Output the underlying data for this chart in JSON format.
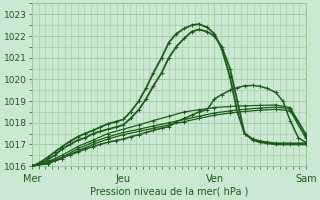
{
  "bg_color": "#cce8d4",
  "plot_bg_color": "#cce8d4",
  "grid_color": "#99cc99",
  "line_color": "#1a5e1a",
  "xlabel": "Pression niveau de la mer( hPa )",
  "ylim": [
    1016,
    1023.5
  ],
  "xlim": [
    0.0,
    3.0
  ],
  "xtick_labels": [
    "Mer",
    "Jeu",
    "Ven",
    "Sam"
  ],
  "xtick_positions": [
    0.0,
    1.0,
    2.0,
    3.0
  ],
  "ytick_positions": [
    1016,
    1017,
    1018,
    1019,
    1020,
    1021,
    1022,
    1023
  ],
  "series": [
    {
      "x": [
        0.0,
        0.08,
        0.17,
        0.25,
        0.33,
        0.42,
        0.5,
        0.58,
        0.67,
        0.75,
        0.83,
        0.92,
        1.0,
        1.08,
        1.17,
        1.25,
        1.33,
        1.42,
        1.5,
        1.58,
        1.67,
        1.75,
        1.83,
        1.92,
        2.0,
        2.08,
        2.17,
        2.25,
        2.33,
        2.42,
        2.5,
        2.58,
        2.67,
        2.75,
        2.83,
        2.92,
        3.0
      ],
      "y": [
        1016.0,
        1016.1,
        1016.3,
        1016.5,
        1016.8,
        1017.0,
        1017.2,
        1017.3,
        1017.5,
        1017.6,
        1017.7,
        1017.8,
        1017.9,
        1018.2,
        1018.6,
        1019.1,
        1019.7,
        1020.3,
        1021.0,
        1021.5,
        1021.9,
        1022.2,
        1022.3,
        1022.2,
        1022.0,
        1021.5,
        1020.5,
        1019.0,
        1017.5,
        1017.2,
        1017.1,
        1017.05,
        1017.0,
        1017.0,
        1017.0,
        1017.0,
        1017.0
      ],
      "lw": 1.3
    },
    {
      "x": [
        0.0,
        0.08,
        0.17,
        0.25,
        0.33,
        0.42,
        0.5,
        0.58,
        0.67,
        0.75,
        0.83,
        0.92,
        1.0,
        1.08,
        1.17,
        1.25,
        1.33,
        1.42,
        1.5,
        1.58,
        1.67,
        1.75,
        1.83,
        1.92,
        2.0,
        2.08,
        2.17,
        2.25,
        2.33,
        2.42,
        2.5,
        2.58,
        2.67,
        2.75,
        2.83,
        2.92,
        3.0
      ],
      "y": [
        1016.0,
        1016.15,
        1016.4,
        1016.65,
        1016.9,
        1017.15,
        1017.35,
        1017.5,
        1017.65,
        1017.8,
        1017.95,
        1018.05,
        1018.15,
        1018.5,
        1019.0,
        1019.6,
        1020.3,
        1021.0,
        1021.7,
        1022.1,
        1022.35,
        1022.5,
        1022.55,
        1022.4,
        1022.1,
        1021.4,
        1020.1,
        1018.5,
        1017.5,
        1017.25,
        1017.15,
        1017.1,
        1017.05,
        1017.05,
        1017.05,
        1017.05,
        1017.05
      ],
      "lw": 1.3
    },
    {
      "x": [
        0.0,
        0.17,
        0.33,
        0.5,
        0.67,
        0.83,
        1.0,
        1.17,
        1.33,
        1.5,
        1.67,
        1.83,
        2.0,
        2.17,
        2.33,
        2.5,
        2.67,
        2.83,
        3.0
      ],
      "y": [
        1016.0,
        1016.2,
        1016.5,
        1016.9,
        1017.2,
        1017.5,
        1017.7,
        1017.9,
        1018.1,
        1018.3,
        1018.5,
        1018.6,
        1018.7,
        1018.75,
        1018.78,
        1018.8,
        1018.82,
        1018.7,
        1017.5
      ],
      "lw": 0.9
    },
    {
      "x": [
        0.0,
        0.17,
        0.33,
        0.5,
        0.67,
        0.83,
        1.0,
        1.17,
        1.33,
        1.5,
        1.67,
        1.83,
        2.0,
        2.17,
        2.33,
        2.5,
        2.67,
        2.83,
        3.0
      ],
      "y": [
        1016.0,
        1016.15,
        1016.4,
        1016.8,
        1017.1,
        1017.35,
        1017.55,
        1017.7,
        1017.85,
        1018.0,
        1018.15,
        1018.3,
        1018.45,
        1018.55,
        1018.62,
        1018.68,
        1018.72,
        1018.65,
        1017.4
      ],
      "lw": 0.9
    },
    {
      "x": [
        0.0,
        0.17,
        0.33,
        0.5,
        0.67,
        0.83,
        1.0,
        1.17,
        1.33,
        1.5,
        1.67,
        1.83,
        2.0,
        2.17,
        2.33,
        2.5,
        2.67,
        2.83,
        3.0
      ],
      "y": [
        1016.0,
        1016.1,
        1016.35,
        1016.7,
        1017.0,
        1017.25,
        1017.45,
        1017.6,
        1017.75,
        1017.9,
        1018.05,
        1018.2,
        1018.35,
        1018.45,
        1018.52,
        1018.58,
        1018.62,
        1018.55,
        1017.3
      ],
      "lw": 0.9
    },
    {
      "x": [
        0.0,
        0.08,
        0.17,
        0.25,
        0.33,
        0.42,
        0.5,
        0.58,
        0.67,
        0.75,
        0.83,
        0.92,
        1.0,
        1.08,
        1.17,
        1.25,
        1.33,
        1.42,
        1.5,
        1.58,
        1.67,
        1.75,
        1.83,
        1.92,
        2.0,
        2.08,
        2.17,
        2.25,
        2.33,
        2.42,
        2.5,
        2.58,
        2.67,
        2.75,
        2.83,
        2.92,
        3.0
      ],
      "y": [
        1016.0,
        1016.08,
        1016.17,
        1016.28,
        1016.4,
        1016.52,
        1016.65,
        1016.78,
        1016.9,
        1017.0,
        1017.1,
        1017.18,
        1017.25,
        1017.35,
        1017.45,
        1017.55,
        1017.65,
        1017.75,
        1017.82,
        1018.05,
        1018.2,
        1018.35,
        1018.5,
        1018.6,
        1019.1,
        1019.3,
        1019.5,
        1019.62,
        1019.7,
        1019.72,
        1019.68,
        1019.58,
        1019.4,
        1019.0,
        1018.1,
        1017.3,
        1017.1
      ],
      "lw": 1.1
    }
  ]
}
